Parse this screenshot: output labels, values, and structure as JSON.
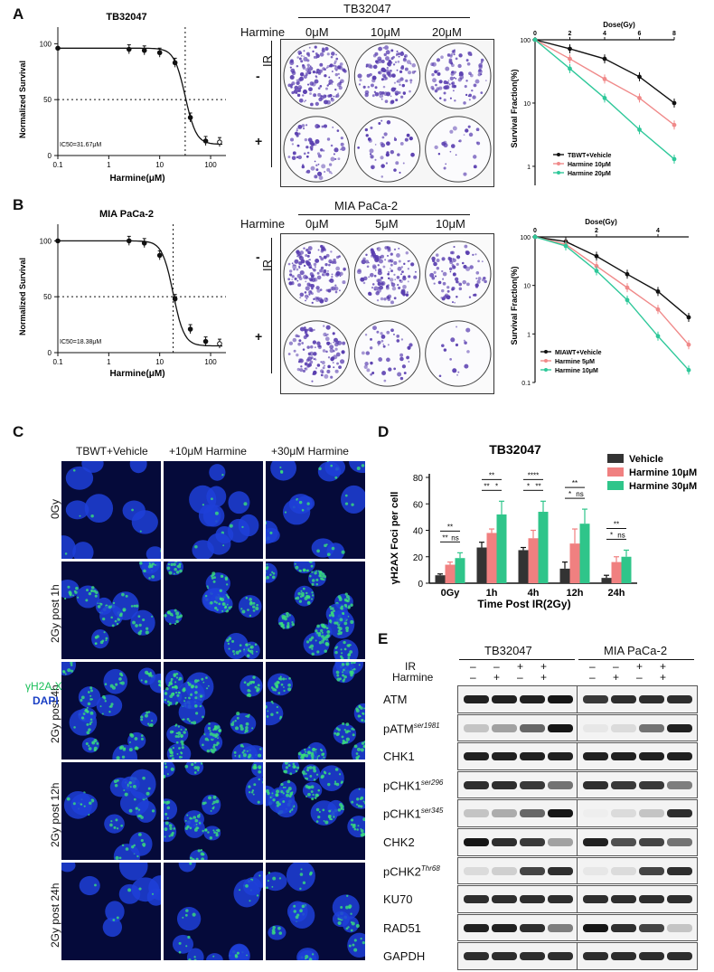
{
  "panels": {
    "A": "A",
    "B": "B",
    "C": "C",
    "D": "D",
    "E": "E"
  },
  "panelA": {
    "curve_title": "TB32047",
    "ylabel": "Normalized Survival",
    "xlabel": "Harmine(μM)",
    "ic50": "IC50=31.67μM",
    "xticks": [
      "0.1",
      "1",
      "10",
      "100"
    ],
    "yticks": [
      "0",
      "50",
      "100"
    ],
    "plates_header": "TB32047",
    "drug_label": "Harmine",
    "doses": [
      "0μM",
      "10μM",
      "20μM"
    ],
    "ir_label": "IR",
    "ir_minus": "-",
    "ir_plus": "+",
    "surv_ylabel": "Survival Fraction(%)",
    "surv_xlabel": "Dose(Gy)",
    "surv_xticks": [
      "0",
      "2",
      "4",
      "6",
      "8"
    ],
    "surv_yticks": [
      "1",
      "10",
      "100"
    ],
    "legend": [
      "TBWT+Vehicle",
      "Harmine 10μM",
      "Harmine 20μM"
    ]
  },
  "panelB": {
    "curve_title": "MIA PaCa-2",
    "ylabel": "Normalized Survival",
    "xlabel": "Harmine(μM)",
    "ic50": "IC50=18.38μM",
    "xticks": [
      "0.1",
      "1",
      "10",
      "100"
    ],
    "yticks": [
      "0",
      "50",
      "100"
    ],
    "plates_header": "MIA PaCa-2",
    "drug_label": "Harmine",
    "doses": [
      "0μM",
      "5μM",
      "10μM"
    ],
    "ir_label": "IR",
    "ir_minus": "-",
    "ir_plus": "+",
    "surv_ylabel": "Survival Fraction(%)",
    "surv_xlabel": "Dose(Gy)",
    "surv_xticks": [
      "0",
      "2",
      "4"
    ],
    "surv_yticks": [
      "0.1",
      "1",
      "10",
      "100"
    ],
    "legend": [
      "MIAWT+Vehicle",
      "Harmine 5μM",
      "Harmine 10μM"
    ]
  },
  "panelC": {
    "columns": [
      "TBWT+Vehicle",
      "+10μM Harmine",
      "+30μM Harmine"
    ],
    "rows": [
      "0Gy",
      "2Gy post 1h",
      "2Gy post 4h",
      "2Gy post 12h",
      "2Gy post 24h"
    ],
    "stain1": "γH2A.X",
    "stain2": "DAPI"
  },
  "panelD": {
    "title": "TB32047",
    "ylabel": "γH2AX Foci per cell",
    "xlabel": "Time Post IR(2Gy)",
    "legend": [
      "Vehicle",
      "Harmine 10μM",
      "Harmine 30μM"
    ],
    "yticks": [
      "0",
      "20",
      "40",
      "60",
      "80"
    ]
  },
  "panelE": {
    "groups": [
      "TB32047",
      "MIA PaCa-2"
    ],
    "ir_label": "IR",
    "harmine_label": "Harmine",
    "ir_signs": [
      "–",
      "–",
      "+",
      "+"
    ],
    "harmine_signs": [
      "–",
      "+",
      "–",
      "+"
    ],
    "proteins": [
      "ATM",
      "pATM",
      "CHK1",
      "pCHK1",
      "pCHK1",
      "CHK2",
      "pCHK2",
      "KU70",
      "RAD51",
      "GAPDH"
    ],
    "protein_sup": [
      "",
      "ser1981",
      "",
      "ser296",
      "ser345",
      "",
      "Thr68",
      "",
      "",
      ""
    ]
  },
  "chart_data": [
    {
      "type": "line",
      "panel": "A-left",
      "title": "TB32047",
      "xlabel": "Harmine(μM)",
      "ylabel": "Normalized Survival",
      "xscale": "log",
      "xlim": [
        0.1,
        200
      ],
      "ylim": [
        0,
        110
      ],
      "series": [
        {
          "x": [
            0.1,
            2.5,
            5,
            10,
            20,
            40,
            80,
            150
          ],
          "values": [
            96,
            95,
            94,
            92,
            83,
            34,
            13,
            12
          ]
        }
      ],
      "annotation": "IC50=31.67μM",
      "ic50": 31.67
    },
    {
      "type": "line",
      "panel": "A-right",
      "xlabel": "Dose(Gy)",
      "ylabel": "Survival Fraction(%)",
      "yscale": "log",
      "xlim": [
        0,
        8
      ],
      "ylim": [
        0.5,
        100
      ],
      "legend_position": "bottom-right",
      "x": [
        0,
        2,
        4,
        6,
        8
      ],
      "series": [
        {
          "name": "TBWT+Vehicle",
          "color": "#111111",
          "values": [
            100,
            72,
            50,
            26,
            10
          ]
        },
        {
          "name": "Harmine 10μM",
          "color": "#f08a8a",
          "values": [
            100,
            50,
            24,
            12,
            4.5
          ]
        },
        {
          "name": "Harmine 20μM",
          "color": "#2fc89a",
          "values": [
            100,
            35,
            12,
            3.8,
            1.3
          ]
        }
      ]
    },
    {
      "type": "line",
      "panel": "B-left",
      "title": "MIA PaCa-2",
      "xlabel": "Harmine(μM)",
      "ylabel": "Normalized Survival",
      "xscale": "log",
      "xlim": [
        0.1,
        200
      ],
      "ylim": [
        0,
        110
      ],
      "series": [
        {
          "x": [
            0.1,
            2.5,
            5,
            10,
            20,
            40,
            80,
            150
          ],
          "values": [
            100,
            100,
            98,
            87,
            48,
            21,
            10,
            8
          ]
        }
      ],
      "annotation": "IC50=18.38μM",
      "ic50": 18.38
    },
    {
      "type": "line",
      "panel": "B-right",
      "xlabel": "Dose(Gy)",
      "ylabel": "Survival Fraction(%)",
      "yscale": "log",
      "xlim": [
        0,
        5
      ],
      "ylim": [
        0.1,
        100
      ],
      "legend_position": "bottom-left",
      "x": [
        0,
        1,
        2,
        3,
        4,
        5
      ],
      "series": [
        {
          "name": "MIAWT+Vehicle",
          "color": "#111111",
          "values": [
            100,
            80,
            40,
            17,
            7.5,
            2.2
          ]
        },
        {
          "name": "Harmine 5μM",
          "color": "#f08a8a",
          "values": [
            100,
            70,
            25,
            9,
            3.2,
            0.6
          ]
        },
        {
          "name": "Harmine 10μM",
          "color": "#2fc89a",
          "values": [
            100,
            65,
            20,
            5,
            0.9,
            0.18
          ]
        }
      ]
    },
    {
      "type": "bar",
      "panel": "D",
      "title": "TB32047",
      "xlabel": "Time Post IR(2Gy)",
      "ylabel": "γH2AX Foci per cell",
      "ylim": [
        0,
        80
      ],
      "legend_position": "top-right",
      "categories": [
        "0Gy",
        "1h",
        "4h",
        "12h",
        "24h"
      ],
      "series": [
        {
          "name": "Vehicle",
          "color": "#333333",
          "values": [
            6,
            27,
            25,
            11,
            4
          ]
        },
        {
          "name": "Harmine 10μM",
          "color": "#f08080",
          "values": [
            14,
            38,
            34,
            30,
            16
          ]
        },
        {
          "name": "Harmine 30μM",
          "color": "#2fc58a",
          "values": [
            19,
            52,
            54,
            45,
            20
          ]
        }
      ],
      "errors": [
        [
          1,
          4,
          2,
          5,
          2
        ],
        [
          2,
          3,
          6,
          11,
          4
        ],
        [
          4,
          10,
          8,
          11,
          5
        ]
      ],
      "significance": [
        [
          "**",
          "**",
          "ns"
        ],
        [
          "**",
          "**",
          "*"
        ],
        [
          "****",
          "*",
          "**"
        ],
        [
          "**",
          "*",
          "ns"
        ],
        [
          "**",
          "*",
          "ns"
        ]
      ]
    }
  ]
}
